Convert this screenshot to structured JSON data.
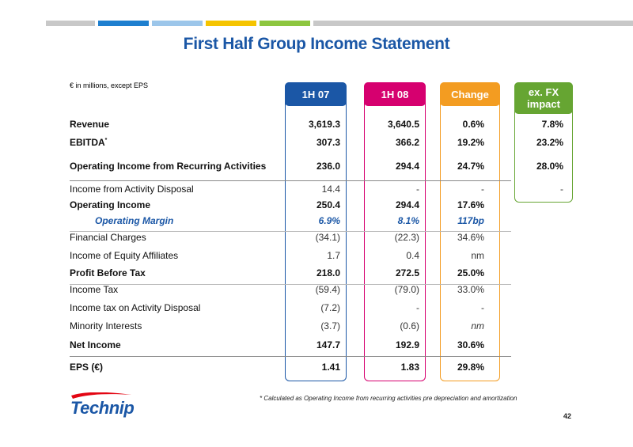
{
  "title": "First Half Group Income Statement",
  "units_note": "€ in millions, except EPS",
  "columns": [
    {
      "label": "1H 07",
      "color": "#1b57a6"
    },
    {
      "label": "1H 08",
      "color": "#d6006f"
    },
    {
      "label": "Change",
      "color": "#f39c21"
    },
    {
      "label": "ex. FX impact",
      "color": "#66a532"
    }
  ],
  "top_bar_colors": [
    "#c8c8c8",
    "#1e7fcf",
    "#9cc6ea",
    "#f5c400",
    "#8dc63f",
    "#c8c8c8"
  ],
  "rows": [
    {
      "label": "Revenue",
      "style": "bold",
      "v1": "3,619.3",
      "v2": "3,640.5",
      "chg": "0.6%",
      "fx": "7.8%"
    },
    {
      "label": "EBITDA",
      "sup": "*",
      "style": "bold",
      "v1": "307.3",
      "v2": "366.2",
      "chg": "19.2%",
      "fx": "23.2%"
    },
    {
      "label": "Operating Income from Recurring Activities",
      "style": "bold",
      "v1": "236.0",
      "v2": "294.4",
      "chg": "24.7%",
      "fx": "28.0%"
    },
    {
      "label": "Income from Activity Disposal",
      "style": "normal",
      "v1": "14.4",
      "v2": "-",
      "chg": "-",
      "fx": "-"
    },
    {
      "label": "Operating Income",
      "style": "bold",
      "v1": "250.4",
      "v2": "294.4",
      "chg": "17.6%",
      "fx": ""
    },
    {
      "label": "Operating Margin",
      "style": "margin",
      "v1": "6.9%",
      "v2": "8.1%",
      "chg": "117bp",
      "fx": ""
    },
    {
      "label": "Financial Charges",
      "style": "normal",
      "v1": "(34.1)",
      "v2": "(22.3)",
      "chg": "34.6%",
      "fx": ""
    },
    {
      "label": "Income of Equity Affiliates",
      "style": "normal",
      "v1": "1.7",
      "v2": "0.4",
      "chg": "nm",
      "fx": ""
    },
    {
      "label": "Profit Before Tax",
      "style": "bold",
      "v1": "218.0",
      "v2": "272.5",
      "chg": "25.0%",
      "fx": ""
    },
    {
      "label": "Income Tax",
      "style": "normal",
      "v1": "(59.4)",
      "v2": "(79.0)",
      "chg": "33.0%",
      "fx": ""
    },
    {
      "label": "Income tax on Activity Disposal",
      "style": "normal",
      "v1": "(7.2)",
      "v2": "-",
      "chg": "-",
      "fx": ""
    },
    {
      "label": "Minority Interests",
      "style": "normal",
      "v1": "(3.7)",
      "v2": "(0.6)",
      "chg": "nm",
      "fx": ""
    },
    {
      "label": "Net Income",
      "style": "bold",
      "v1": "147.7",
      "v2": "192.9",
      "chg": "30.6%",
      "fx": ""
    },
    {
      "label": "EPS (€)",
      "style": "bold",
      "v1": "1.41",
      "v2": "1.83",
      "chg": "29.8%",
      "fx": ""
    }
  ],
  "footnote": "* Calculated as Operating Income from recurring activities pre depreciation and amortization",
  "logo_text": "Technip",
  "page_number": "42"
}
